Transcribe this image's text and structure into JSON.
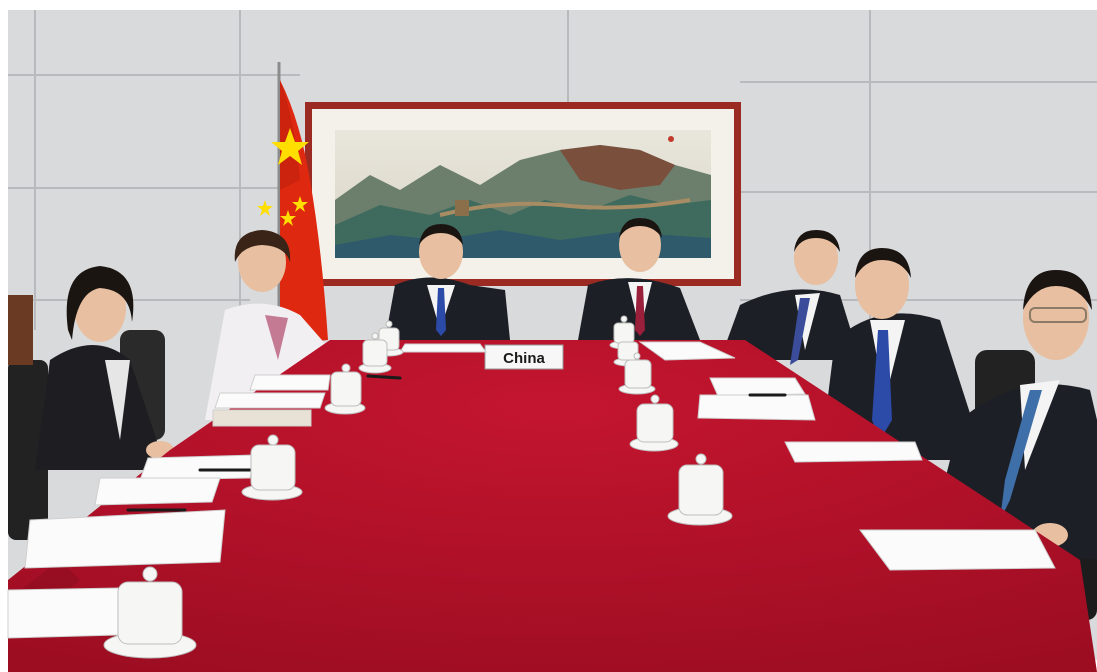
{
  "photo": {
    "nameplate_label": "China"
  },
  "colors": {
    "wall": "#d9dadc",
    "wall_seam": "#b9babd",
    "tablecloth": "#b5112a",
    "tablecloth_shade": "#8e0b1f",
    "flag_red": "#de2910",
    "flag_star": "#ffde00",
    "frame": "#9a2a22",
    "suit": "#1c1f26",
    "shirt": "#f4f4f4",
    "skin": "#e8bfa0",
    "hair": "#1b1512",
    "cup": "#f6f6f4",
    "paper": "#fbfbfb"
  }
}
